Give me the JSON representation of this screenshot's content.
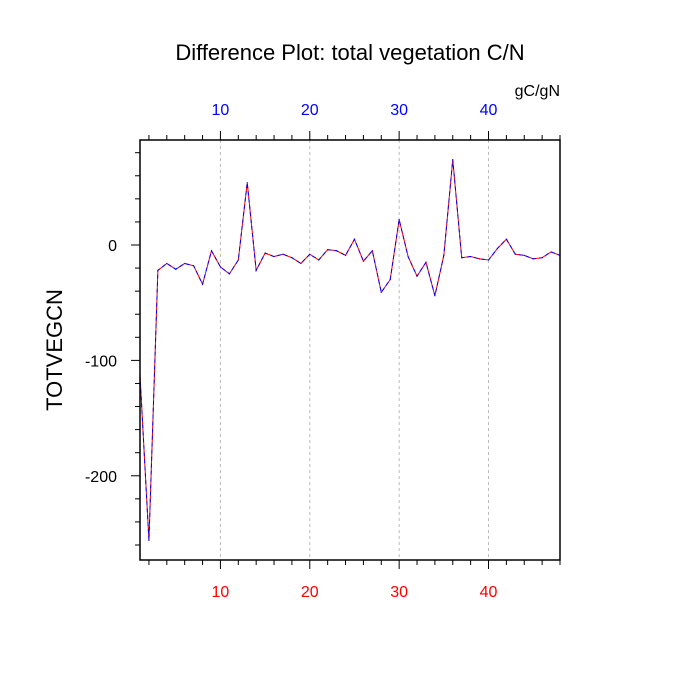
{
  "chart_data": {
    "type": "line",
    "title": "Difference Plot: total vegetation C/N",
    "ylabel": "TOTVEGCN",
    "units": "gC/gN",
    "xlim": [
      1,
      48
    ],
    "ylim": [
      -273,
      91
    ],
    "grid": "vertical dashed at major x ticks",
    "x_ticks": [
      10,
      20,
      30,
      40
    ],
    "y_ticks": [
      0,
      -100,
      -200
    ],
    "x_tick_labels": [
      "10",
      "20",
      "30",
      "40"
    ],
    "y_tick_labels": [
      "0",
      "-100",
      "-200"
    ],
    "colors": {
      "bottom_ticks": "#ff0000",
      "top_ticks": "#0000ff",
      "line_a": "#ff0000",
      "line_b": "#0000ff"
    },
    "series": [
      {
        "x": [
          1,
          2,
          3,
          4,
          5,
          6,
          7,
          8,
          9,
          10,
          11,
          12,
          13,
          14,
          15,
          16,
          17,
          18,
          19,
          20,
          21,
          22,
          23,
          24,
          25,
          26,
          27,
          28,
          29,
          30,
          31,
          32,
          33,
          34,
          35,
          36,
          37,
          38,
          39,
          40,
          41,
          42,
          43,
          44,
          45,
          46,
          47,
          48
        ],
        "values": [
          -113,
          -256,
          -22,
          -16,
          -21,
          -16,
          -18,
          -34,
          -5,
          -19,
          -25,
          -13,
          54,
          -22,
          -7,
          -10,
          -8,
          -11,
          -16,
          -8,
          -13,
          -4,
          -5,
          -9,
          5,
          -14,
          -5,
          -41,
          -30,
          22,
          -10,
          -27,
          -15,
          -44,
          -9,
          74,
          -11,
          -10,
          -12,
          -13,
          -3,
          5,
          -8,
          -9,
          -12,
          -11,
          -6,
          -9
        ]
      }
    ]
  }
}
